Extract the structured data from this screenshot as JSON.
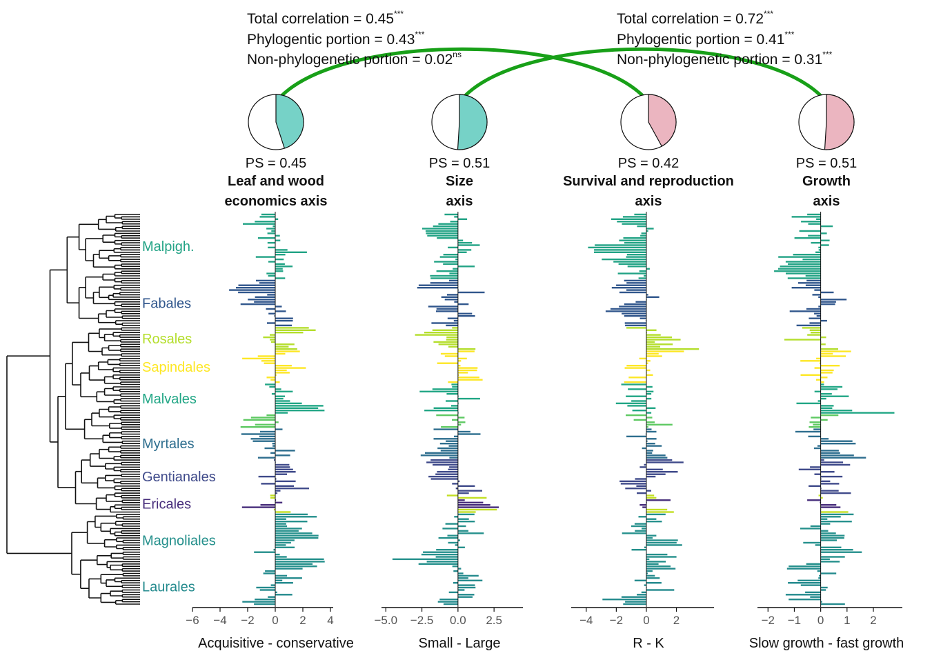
{
  "chart_data": {
    "type": "bar",
    "orientation": "horizontal",
    "n_species": 166,
    "correlations": [
      {
        "from_panel": 0,
        "to_panel": 2,
        "total": "Total correlation = 0.45",
        "total_sig": "***",
        "phylo": "Phylogentic portion = 0.43",
        "phylo_sig": "***",
        "nonphylo": "Non-phylogenetic portion = 0.02",
        "nonphylo_sig": "ns"
      },
      {
        "from_panel": 1,
        "to_panel": 3,
        "total": "Total correlation = 0.72",
        "total_sig": "***",
        "phylo": "Phylogentic portion = 0.41",
        "phylo_sig": "***",
        "nonphylo": "Non-phylogenetic portion = 0.31",
        "nonphylo_sig": "***"
      }
    ],
    "clades": [
      {
        "name": "Malpigh.",
        "color": "#22a385",
        "start": 0,
        "end": 28
      },
      {
        "name": "Fabales",
        "color": "#30568c",
        "start": 28,
        "end": 48
      },
      {
        "name": "Rosales",
        "color": "#b4de2c",
        "start": 48,
        "end": 58
      },
      {
        "name": "Sapindales",
        "color": "#fde725",
        "start": 58,
        "end": 72
      },
      {
        "name": "Malvales",
        "color": "#21a685",
        "start": 72,
        "end": 85
      },
      {
        "name": "",
        "color": "#5ec962",
        "start": 85,
        "end": 91
      },
      {
        "name": "Myrtales",
        "color": "#2e6e8e",
        "start": 91,
        "end": 104
      },
      {
        "name": "Gentianales",
        "color": "#3f4a8a",
        "start": 104,
        "end": 119
      },
      {
        "name": "",
        "color": "#c2df23",
        "start": 119,
        "end": 121
      },
      {
        "name": "Ericales",
        "color": "#472d7b",
        "start": 121,
        "end": 125
      },
      {
        "name": "",
        "color": "#c2df23",
        "start": 125,
        "end": 127
      },
      {
        "name": "Magnoliales",
        "color": "#25908c",
        "start": 127,
        "end": 150
      },
      {
        "name": "Laurales",
        "color": "#238a8d",
        "start": 150,
        "end": 166
      }
    ],
    "panels": [
      {
        "title1": "Leaf and wood",
        "title2": "economics axis",
        "ps": "PS = 0.45",
        "ps_fraction": 0.45,
        "pie_color": "#76d2c7",
        "xlabel": "Acquisitive - conservative",
        "xlim": [
          -6,
          4.2
        ],
        "ticks": [
          -6,
          -4,
          -2,
          0,
          2,
          4
        ],
        "tick_labels": [
          "−6",
          "−4",
          "−2",
          "0",
          "2",
          "4"
        ],
        "min": -5.6,
        "max": 3.6,
        "seed": 11
      },
      {
        "title1": "Size",
        "title2": "axis",
        "ps": "PS  = 0.51",
        "ps_fraction": 0.51,
        "pie_color": "#76d2c7",
        "xlabel": "Small - Large",
        "xlim": [
          -5.3,
          4.5
        ],
        "ticks": [
          -5,
          -2.5,
          0,
          2.5
        ],
        "tick_labels": [
          "−5.0",
          "−2.5",
          "0.0",
          "2.5"
        ],
        "min": -4.7,
        "max": 4.0,
        "seed": 23
      },
      {
        "title1": "Survival and reproduction",
        "title2": "axis",
        "ps": "PS  = 0.42",
        "ps_fraction": 0.42,
        "pie_color": "#ebb5c0",
        "xlabel": "R - K",
        "xlim": [
          -5,
          4.5
        ],
        "ticks": [
          -4,
          -2,
          0,
          2
        ],
        "tick_labels": [
          "−4",
          "−2",
          "0",
          "2"
        ],
        "min": -4.2,
        "max": 3.5,
        "seed": 37
      },
      {
        "title1": "Growth",
        "title2": "axis",
        "ps": "PS  = 0.51",
        "ps_fraction": 0.51,
        "pie_color": "#ebb5c0",
        "xlabel": "Slow growth - fast growth",
        "xlim": [
          -2.4,
          3.1
        ],
        "ticks": [
          -2,
          -1,
          0,
          1,
          2
        ],
        "tick_labels": [
          "−2",
          "−1",
          "0",
          "1",
          "2"
        ],
        "min": -2.2,
        "max": 2.8,
        "seed": 53
      }
    ],
    "connector_color": "#18a018"
  }
}
